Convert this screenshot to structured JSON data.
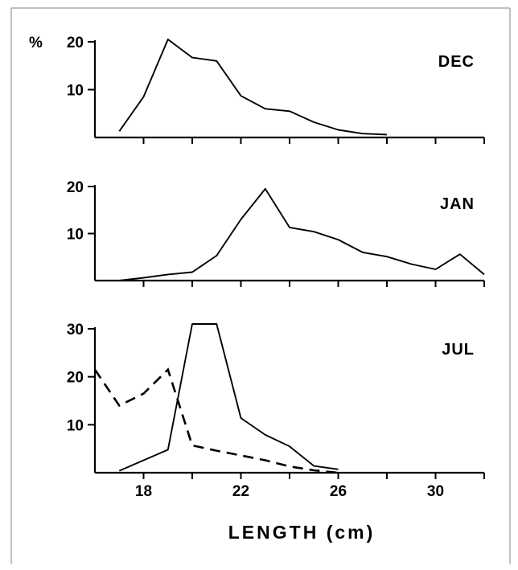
{
  "chart_data": {
    "type": "line",
    "xlabel": "LENGTH (cm)",
    "x_ticks": [
      18,
      22,
      26,
      30
    ],
    "xlim": [
      16,
      32
    ],
    "panels": [
      {
        "label": "DEC",
        "y_unit": "%",
        "ylim": [
          0,
          20
        ],
        "y_ticks": [
          10,
          20
        ],
        "series": [
          {
            "style": "solid",
            "points": [
              [
                17,
                1.3
              ],
              [
                18,
                8.5
              ],
              [
                19,
                20.5
              ],
              [
                20,
                16.7
              ],
              [
                21,
                16
              ],
              [
                22,
                8.7
              ],
              [
                23,
                6
              ],
              [
                24,
                5.5
              ],
              [
                25,
                3.2
              ],
              [
                26,
                1.6
              ],
              [
                27,
                0.8
              ],
              [
                28,
                0.6
              ]
            ]
          }
        ]
      },
      {
        "label": "JAN",
        "y_unit": "",
        "ylim": [
          0,
          20
        ],
        "y_ticks": [
          10,
          20
        ],
        "series": [
          {
            "style": "solid",
            "points": [
              [
                17,
                0
              ],
              [
                18,
                0.6
              ],
              [
                19,
                1.3
              ],
              [
                20,
                1.8
              ],
              [
                21,
                5.3
              ],
              [
                22,
                13
              ],
              [
                23,
                19.5
              ],
              [
                24,
                11.3
              ],
              [
                25,
                10.4
              ],
              [
                26,
                8.7
              ],
              [
                27,
                6
              ],
              [
                28,
                5.1
              ],
              [
                29,
                3.5
              ],
              [
                30,
                2.4
              ],
              [
                31,
                5.6
              ],
              [
                32,
                1.3
              ]
            ]
          }
        ]
      },
      {
        "label": "JUL",
        "y_unit": "",
        "ylim": [
          0,
          30
        ],
        "y_ticks": [
          10,
          20,
          30
        ],
        "series": [
          {
            "style": "solid",
            "points": [
              [
                17,
                0.4
              ],
              [
                18,
                2.6
              ],
              [
                19,
                4.8
              ],
              [
                20,
                31
              ],
              [
                21,
                31
              ],
              [
                22,
                11.4
              ],
              [
                23,
                7.9
              ],
              [
                24,
                5.5
              ],
              [
                25,
                1.4
              ],
              [
                26,
                0.7
              ]
            ]
          },
          {
            "style": "dashed",
            "points": [
              [
                16,
                21.5
              ],
              [
                17,
                14
              ],
              [
                18,
                16.5
              ],
              [
                19,
                21.5
              ],
              [
                20,
                5.7
              ],
              [
                21,
                4.6
              ],
              [
                22,
                3.6
              ],
              [
                23,
                2.6
              ],
              [
                24,
                1.3
              ],
              [
                25,
                0.5
              ],
              [
                26,
                0
              ]
            ]
          }
        ]
      }
    ]
  }
}
